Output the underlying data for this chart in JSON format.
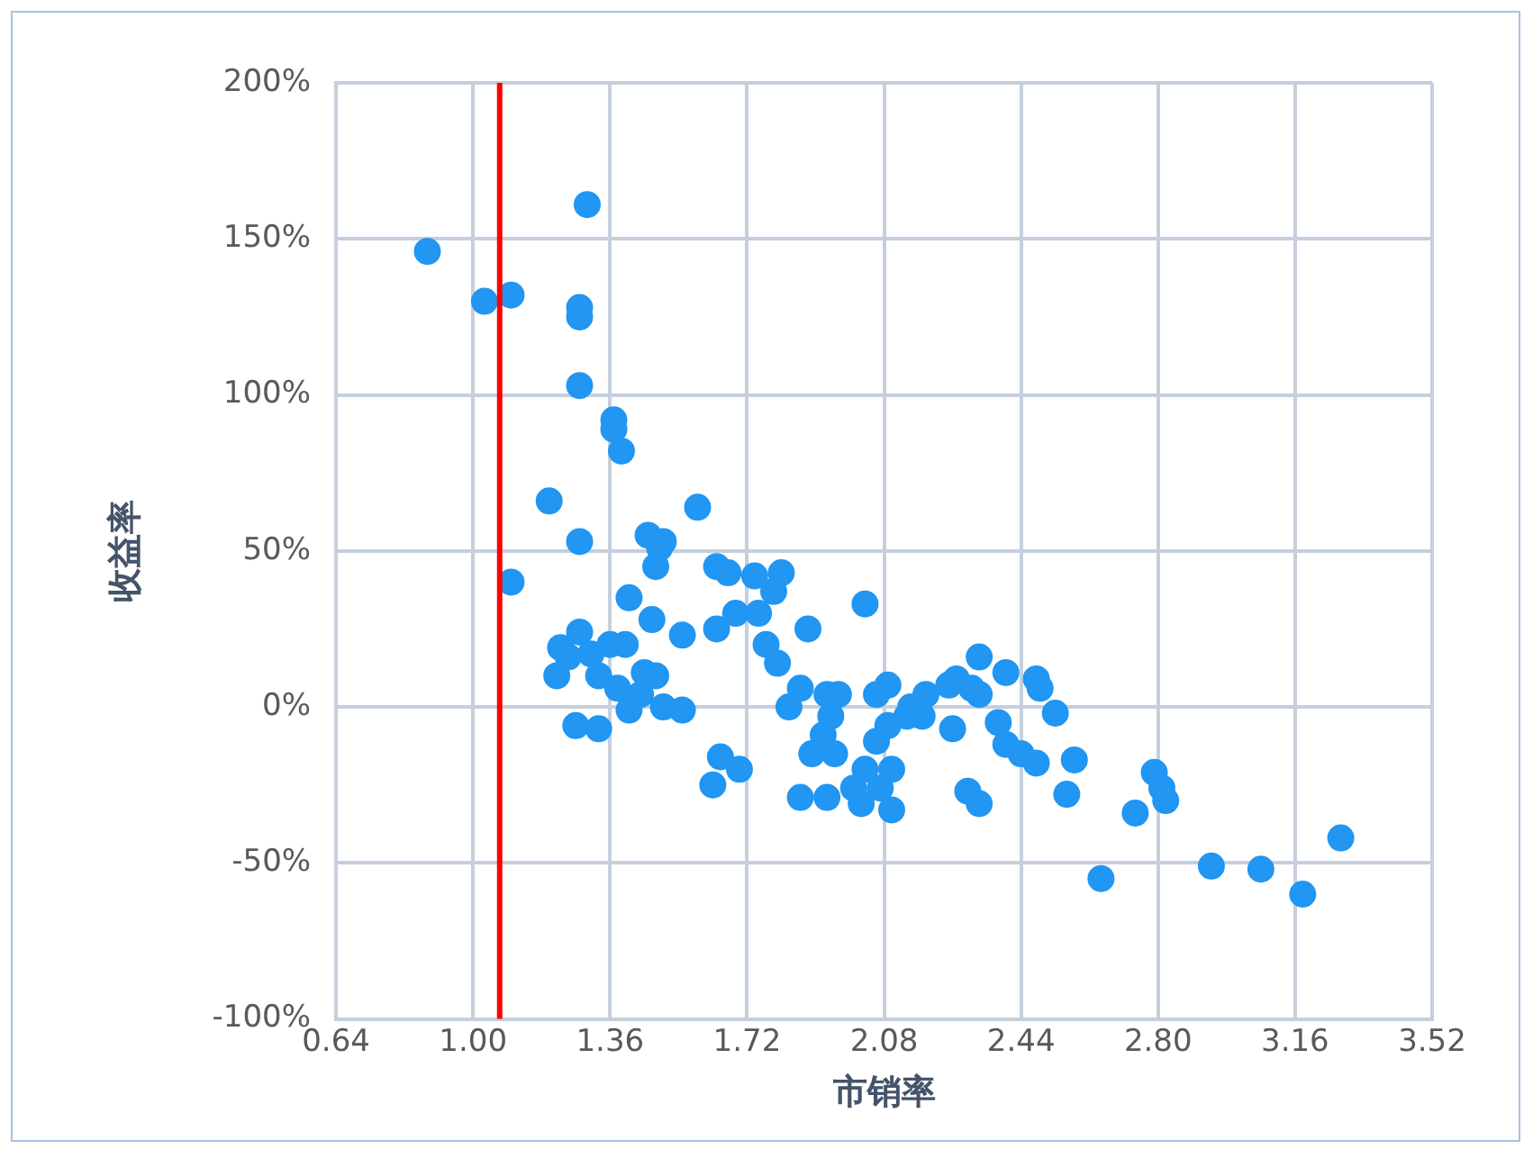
{
  "chart_data": {
    "type": "scatter",
    "xlabel": "市销率",
    "ylabel": "收益率",
    "marker": "circle",
    "grid": true,
    "legend": false,
    "xlim": [
      0.64,
      3.52
    ],
    "xticks": [
      0.64,
      {
        "value": 1,
        "label": "1.00"
      },
      1.36,
      1.72,
      2.08,
      2.44,
      {
        "value": 2.8,
        "label": "2.80"
      },
      3.16,
      3.52
    ],
    "ylim": [
      -100,
      200
    ],
    "yticks": [
      {
        "value": -100,
        "label": "-100%"
      },
      {
        "value": -50,
        "label": "-50%"
      },
      {
        "value": 0,
        "label": "0%"
      },
      {
        "value": 50,
        "label": "50%"
      },
      {
        "value": 100,
        "label": "100%"
      },
      {
        "value": 150,
        "label": "150%"
      },
      {
        "value": 200,
        "label": "200%"
      }
    ],
    "ref_lines": [
      {
        "axis": "x",
        "value": 1.07,
        "color": "#ff0000"
      }
    ],
    "series": [
      {
        "color": "#2196f3",
        "x": [
          0.88,
          1.03,
          1.1,
          1.3,
          1.28,
          1.28,
          1.28,
          1.37,
          1.37,
          1.39,
          1.2,
          1.28,
          1.1,
          1.59,
          1.46,
          1.49,
          1.48,
          1.5,
          1.41,
          1.47,
          1.55,
          1.23,
          1.28,
          1.31,
          1.22,
          1.25,
          1.33,
          1.36,
          1.4,
          1.38,
          1.45,
          1.48,
          1.27,
          1.33,
          1.41,
          1.44,
          1.5,
          1.55,
          1.64,
          1.67,
          1.64,
          1.74,
          1.81,
          1.79,
          1.75,
          1.69,
          1.77,
          1.8,
          1.88,
          2.03,
          1.83,
          1.86,
          1.63,
          1.65,
          1.7,
          1.93,
          1.96,
          1.94,
          1.92,
          1.89,
          1.95,
          1.86,
          1.93,
          2.0,
          2.03,
          2.06,
          2.09,
          2.09,
          2.06,
          2.1,
          2.07,
          2.1,
          2.02,
          2.15,
          2.19,
          2.18,
          2.33,
          2.27,
          2.31,
          2.33,
          2.4,
          2.48,
          2.49,
          2.53,
          2.26,
          2.38,
          2.4,
          2.48,
          2.44,
          2.58,
          2.56,
          2.3,
          2.33,
          2.14,
          2.25,
          2.79,
          2.81,
          2.82,
          2.74,
          2.65,
          2.94,
          3.07,
          3.18,
          3.28
        ],
        "values": [
          146,
          130,
          132,
          161,
          128,
          125,
          103,
          92,
          89,
          82,
          66,
          53,
          40,
          64,
          55,
          51,
          45,
          53,
          35,
          28,
          23,
          19,
          24,
          17,
          10,
          16,
          10,
          20,
          20,
          6,
          11,
          10,
          -6,
          -7,
          -1,
          4,
          0,
          -1,
          45,
          43,
          25,
          42,
          43,
          37,
          30,
          30,
          20,
          14,
          25,
          33,
          0,
          6,
          -25,
          -16,
          -20,
          4,
          4,
          -3,
          -9,
          -15,
          -15,
          -29,
          -29,
          -26,
          -20,
          -11,
          -6,
          7,
          4,
          -20,
          -26,
          -33,
          -31,
          0,
          4,
          -3,
          16,
          9,
          6,
          4,
          11,
          9,
          6,
          -2,
          -7,
          -5,
          -12,
          -18,
          -15,
          -17,
          -28,
          -27,
          -31,
          -3,
          7,
          -21,
          -26,
          -30,
          -34,
          -55,
          -51,
          -52,
          -60,
          -42
        ]
      }
    ]
  }
}
